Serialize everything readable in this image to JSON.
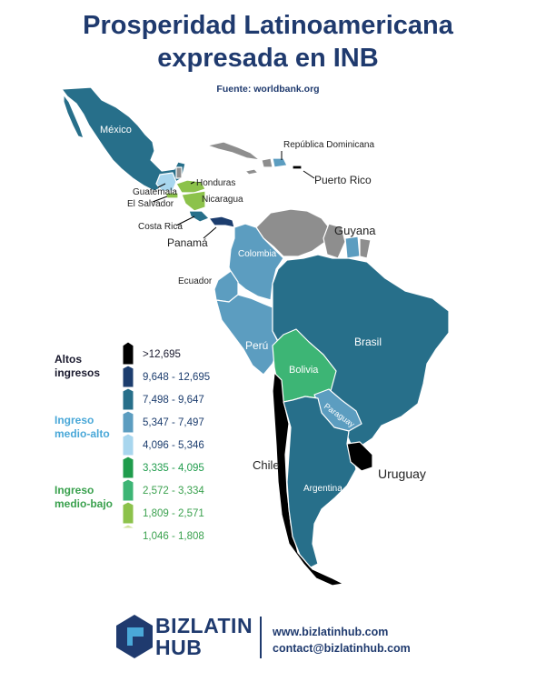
{
  "title_line1": "Prosperidad Latinoamericana",
  "title_line2": "expresada en INB",
  "source": "Fuente: worldbank.org",
  "colors": {
    "c1": "#000000",
    "c2": "#1c3d6e",
    "c3": "#276f8a",
    "c4": "#5c9dc0",
    "c5": "#a8d6ee",
    "c6": "#1f9c4c",
    "c7": "#3db575",
    "c8": "#8cc24b",
    "c9": "#cfe39a",
    "nodata": "#8e8e8e"
  },
  "legend": {
    "high_label": "Altos ingresos",
    "upper_mid_label": "Ingreso medio-alto",
    "lower_mid_label": "Ingreso medio-bajo",
    "ranges": [
      ">12,695",
      "9,648 - 12,695",
      "7,498 - 9,647",
      "5,347 - 7,497",
      "4,096 - 5,346",
      "3,335 - 4,095",
      "2,572 - 3,334",
      "1,809 - 2,571",
      "1,046 - 1,808"
    ]
  },
  "countries": {
    "mexico": "México",
    "dominican_republic": "República Dominicana",
    "puerto_rico": "Puerto Rico",
    "honduras": "Honduras",
    "guatemala": "Guatemala",
    "el_salvador": "El Salvador",
    "nicaragua": "Nicaragua",
    "costa_rica": "Costa Rica",
    "panama": "Panamá",
    "guyana": "Guyana",
    "colombia": "Colombia",
    "ecuador": "Ecuador",
    "peru": "Perú",
    "brazil": "Brasil",
    "bolivia": "Bolivia",
    "paraguay": "Paraguay",
    "chile": "Chile",
    "argentina": "Argentina",
    "uruguay": "Uruguay"
  },
  "brand": {
    "line1": "BIZLATIN",
    "line2": "HUB"
  },
  "contact": {
    "web": "www.bizlatinhub.com",
    "email": "contact@bizlatinhub.com"
  }
}
